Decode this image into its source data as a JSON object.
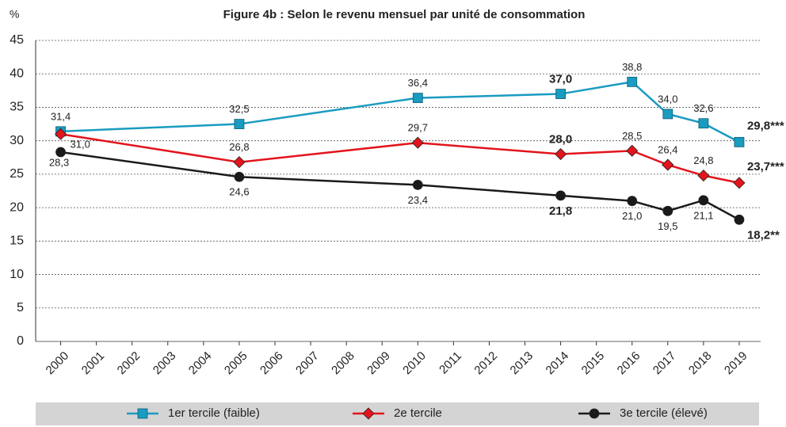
{
  "chart_data": {
    "type": "line",
    "title": "Figure 4b : Selon le revenu mensuel par unité de consommation",
    "y_label": "%",
    "x": [
      2000,
      2005,
      2010,
      2014,
      2016,
      2017,
      2018,
      2019
    ],
    "xlim": [
      1999.3,
      2019.6
    ],
    "xticks": [
      2000,
      2001,
      2002,
      2003,
      2004,
      2005,
      2006,
      2007,
      2008,
      2009,
      2010,
      2011,
      2012,
      2013,
      2014,
      2015,
      2016,
      2017,
      2018,
      2019
    ],
    "ylim": [
      0,
      45
    ],
    "yticks": [
      0,
      5,
      10,
      15,
      20,
      25,
      30,
      35,
      40,
      45
    ],
    "grid": true,
    "series": [
      {
        "name": "1er tercile (faible)",
        "color": "#1a9bc0",
        "marker": "square",
        "values": [
          31.4,
          32.5,
          36.4,
          37.0,
          38.8,
          34.0,
          32.6,
          29.8
        ],
        "value_labels": [
          "31,4",
          "32,5",
          "36,4",
          "37,0",
          "38,8",
          "34,0",
          "32,6",
          "29,8***"
        ]
      },
      {
        "name": "2e tercile",
        "color": "#e3141c",
        "marker": "diamond",
        "values": [
          31.0,
          26.8,
          29.7,
          28.0,
          28.5,
          26.4,
          24.8,
          23.7
        ],
        "value_labels": [
          "31,0",
          "26,8",
          "29,7",
          "28,0",
          "28,5",
          "26,4",
          "24,8",
          "23,7***"
        ]
      },
      {
        "name": "3e tercile (élevé)",
        "color": "#1a1a1a",
        "marker": "circle",
        "values": [
          28.3,
          24.6,
          23.4,
          21.8,
          21.0,
          19.5,
          21.1,
          18.2
        ],
        "value_labels": [
          "28,3",
          "24,6",
          "23,4",
          "21,8",
          "21,0",
          "19,5",
          "21,1",
          "18,2**"
        ]
      }
    ]
  }
}
